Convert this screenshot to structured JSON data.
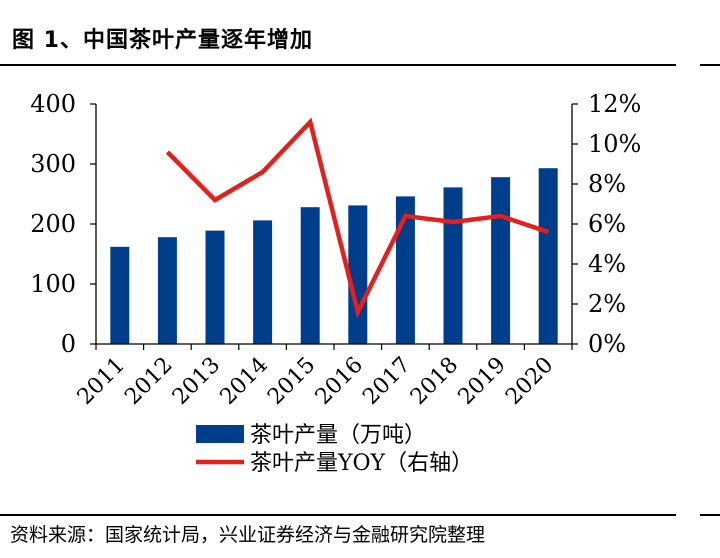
{
  "header": {
    "title": "图 1、中国茶叶产量逐年增加"
  },
  "footer": {
    "source": "资料来源：国家统计局，兴业证券经济与金融研究院整理"
  },
  "colors": {
    "bar": "#003E8C",
    "line": "#E3211C"
  },
  "chart_data": {
    "type": "bar",
    "categories": [
      "2011",
      "2012",
      "2013",
      "2014",
      "2015",
      "2016",
      "2017",
      "2018",
      "2019",
      "2020"
    ],
    "series": [
      {
        "name": "茶叶产量（万吨）",
        "type": "bar",
        "axis": "left",
        "values": [
          162,
          178,
          189,
          206,
          228,
          231,
          246,
          261,
          278,
          293
        ]
      },
      {
        "name": "茶叶产量YOY（右轴）",
        "type": "line",
        "axis": "right",
        "values": [
          null,
          9.6,
          7.2,
          8.6,
          11.1,
          1.6,
          6.4,
          6.1,
          6.4,
          5.6
        ]
      }
    ],
    "ylim_left": [
      0,
      400
    ],
    "yticks_left": [
      "0",
      "100",
      "200",
      "300",
      "400"
    ],
    "ylim_right": [
      0,
      12
    ],
    "yticks_right": [
      "0%",
      "2%",
      "4%",
      "6%",
      "8%",
      "10%",
      "12%"
    ],
    "legend_position": "bottom",
    "grid": false
  }
}
